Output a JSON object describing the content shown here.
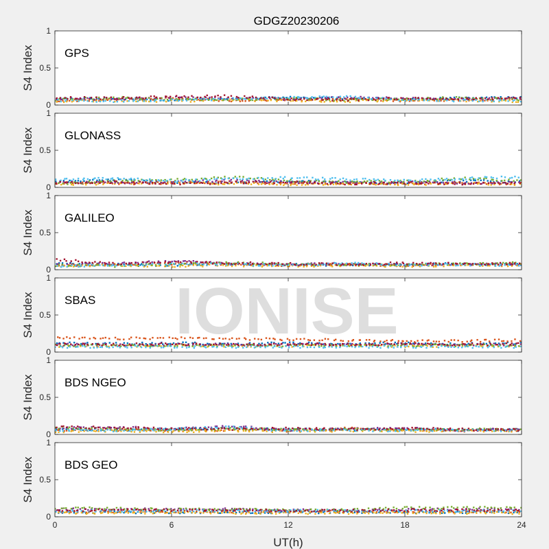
{
  "figure_title": "GDGZ20230206",
  "watermark": "IONISE",
  "colors": {
    "background": "#f0f0f0",
    "axes_bg": "#ffffff",
    "axis_line": "#262626",
    "series": [
      "#0072BD",
      "#D95319",
      "#EDB120",
      "#7E2F8E",
      "#77AC30",
      "#4DBEEE",
      "#A2142F"
    ]
  },
  "chart_data": [
    {
      "type": "scatter",
      "title": "GPS",
      "xlabel": "",
      "ylabel": "S4 Index",
      "xlim": [
        0,
        24
      ],
      "ylim": [
        0,
        1
      ],
      "xticks": [
        0,
        6,
        12,
        18,
        24
      ],
      "xtick_labels": [
        "",
        "",
        "",
        "",
        ""
      ],
      "yticks": [
        0,
        0.5,
        1
      ],
      "ytick_labels": [
        "0",
        "0.5",
        "1"
      ],
      "grid": false,
      "series": [
        {
          "x": [
            0,
            3,
            6,
            9,
            12,
            15,
            18,
            21,
            24
          ],
          "y": [
            0.08,
            0.09,
            0.07,
            0.08,
            0.1,
            0.09,
            0.08,
            0.09,
            0.1
          ]
        },
        {
          "x": [
            0,
            3,
            6,
            9,
            12,
            15,
            18,
            21,
            24
          ],
          "y": [
            0.06,
            0.07,
            0.09,
            0.06,
            0.07,
            0.08,
            0.06,
            0.07,
            0.08
          ]
        },
        {
          "x": [
            0,
            3,
            6,
            9,
            12,
            15,
            18,
            21,
            24
          ],
          "y": [
            0.05,
            0.06,
            0.05,
            0.07,
            0.06,
            0.05,
            0.07,
            0.06,
            0.05
          ]
        },
        {
          "x": [
            0,
            3,
            6,
            9,
            12,
            15,
            18,
            21,
            24
          ],
          "y": [
            0.09,
            0.08,
            0.1,
            0.09,
            0.08,
            0.1,
            0.09,
            0.08,
            0.09
          ]
        },
        {
          "x": [
            0,
            3,
            6,
            9,
            12,
            15,
            18,
            21,
            24
          ],
          "y": [
            0.07,
            0.1,
            0.08,
            0.07,
            0.09,
            0.07,
            0.08,
            0.1,
            0.07
          ]
        },
        {
          "x": [
            0,
            3,
            6,
            9,
            12,
            15,
            18,
            21,
            24
          ],
          "y": [
            0.06,
            0.05,
            0.07,
            0.08,
            0.1,
            0.11,
            0.07,
            0.06,
            0.06
          ]
        },
        {
          "x": [
            0,
            3,
            6,
            9,
            12,
            15,
            18,
            21,
            24
          ],
          "y": [
            0.1,
            0.09,
            0.11,
            0.12,
            0.08,
            0.07,
            0.09,
            0.08,
            0.09
          ]
        }
      ]
    },
    {
      "type": "scatter",
      "title": "GLONASS",
      "xlabel": "",
      "ylabel": "S4 Index",
      "xlim": [
        0,
        24
      ],
      "ylim": [
        0,
        1
      ],
      "xticks": [
        0,
        6,
        12,
        18,
        24
      ],
      "xtick_labels": [
        "",
        "",
        "",
        "",
        ""
      ],
      "yticks": [
        0,
        0.5,
        1
      ],
      "ytick_labels": [
        "0",
        "0.5",
        "1"
      ],
      "grid": false,
      "series": [
        {
          "x": [
            0,
            3,
            6,
            9,
            12,
            15,
            18,
            21,
            24
          ],
          "y": [
            0.08,
            0.1,
            0.07,
            0.06,
            0.08,
            0.07,
            0.06,
            0.09,
            0.07
          ]
        },
        {
          "x": [
            0,
            3,
            6,
            9,
            12,
            15,
            18,
            21,
            24
          ],
          "y": [
            0.06,
            0.05,
            0.06,
            0.07,
            0.05,
            0.06,
            0.05,
            0.06,
            0.05
          ]
        },
        {
          "x": [
            0,
            3,
            6,
            9,
            12,
            15,
            18,
            21,
            24
          ],
          "y": [
            0.04,
            0.05,
            0.06,
            0.05,
            0.04,
            0.05,
            0.04,
            0.05,
            0.04
          ]
        },
        {
          "x": [
            0,
            3,
            6,
            9,
            12,
            15,
            18,
            21,
            24
          ],
          "y": [
            0.07,
            0.06,
            0.08,
            0.09,
            0.07,
            0.06,
            0.07,
            0.06,
            0.07
          ]
        },
        {
          "x": [
            0,
            3,
            6,
            9,
            12,
            15,
            18,
            21,
            24
          ],
          "y": [
            0.05,
            0.08,
            0.1,
            0.14,
            0.09,
            0.07,
            0.08,
            0.12,
            0.09
          ]
        },
        {
          "x": [
            0,
            3,
            6,
            9,
            12,
            15,
            18,
            21,
            24
          ],
          "y": [
            0.1,
            0.12,
            0.09,
            0.11,
            0.13,
            0.11,
            0.09,
            0.12,
            0.14
          ]
        },
        {
          "x": [
            0,
            3,
            6,
            9,
            12,
            15,
            18,
            21,
            24
          ],
          "y": [
            0.06,
            0.07,
            0.05,
            0.06,
            0.07,
            0.05,
            0.06,
            0.05,
            0.06
          ]
        }
      ]
    },
    {
      "type": "scatter",
      "title": "GALILEO",
      "xlabel": "",
      "ylabel": "S4 Index",
      "xlim": [
        0,
        24
      ],
      "ylim": [
        0,
        1
      ],
      "xticks": [
        0,
        6,
        12,
        18,
        24
      ],
      "xtick_labels": [
        "",
        "",
        "",
        "",
        ""
      ],
      "yticks": [
        0,
        0.5,
        1
      ],
      "ytick_labels": [
        "0",
        "0.5",
        "1"
      ],
      "grid": false,
      "series": [
        {
          "x": [
            0,
            3,
            6,
            9,
            12,
            15,
            18,
            21,
            24
          ],
          "y": [
            0.08,
            0.07,
            0.06,
            0.08,
            0.07,
            0.06,
            0.07,
            0.08,
            0.07
          ]
        },
        {
          "x": [
            0,
            3,
            6,
            9,
            12,
            15,
            18,
            21,
            24
          ],
          "y": [
            0.06,
            0.07,
            0.08,
            0.07,
            0.06,
            0.07,
            0.06,
            0.07,
            0.08
          ]
        },
        {
          "x": [
            0,
            3,
            6,
            9,
            12,
            15,
            18,
            21,
            24
          ],
          "y": [
            0.05,
            0.06,
            0.05,
            0.06,
            0.05,
            0.06,
            0.05,
            0.06,
            0.05
          ]
        },
        {
          "x": [
            0,
            3,
            6,
            9,
            12,
            15,
            18,
            21,
            24
          ],
          "y": [
            0.07,
            0.08,
            0.12,
            0.08,
            0.07,
            0.08,
            0.07,
            0.08,
            0.07
          ]
        },
        {
          "x": [
            0,
            3,
            6,
            9,
            12,
            15,
            18,
            21,
            24
          ],
          "y": [
            0.06,
            0.05,
            0.07,
            0.09,
            0.08,
            0.07,
            0.06,
            0.08,
            0.09
          ]
        },
        {
          "x": [
            0,
            3,
            6,
            9,
            12,
            15,
            18,
            21,
            24
          ],
          "y": [
            0.05,
            0.06,
            0.08,
            0.07,
            0.06,
            0.09,
            0.06,
            0.07,
            0.06
          ]
        },
        {
          "x": [
            0,
            3,
            6,
            9,
            12,
            15,
            18,
            21,
            24
          ],
          "y": [
            0.14,
            0.08,
            0.1,
            0.09,
            0.08,
            0.07,
            0.09,
            0.08,
            0.08
          ]
        }
      ]
    },
    {
      "type": "scatter",
      "title": "SBAS",
      "xlabel": "",
      "ylabel": "S4 Index",
      "xlim": [
        0,
        24
      ],
      "ylim": [
        0,
        1
      ],
      "xticks": [
        0,
        6,
        12,
        18,
        24
      ],
      "xtick_labels": [
        "",
        "",
        "",
        "",
        ""
      ],
      "yticks": [
        0,
        0.5,
        1
      ],
      "ytick_labels": [
        "0",
        "0.5",
        "1"
      ],
      "grid": false,
      "series": [
        {
          "x": [
            0,
            3,
            6,
            9,
            12,
            15,
            18,
            21,
            24
          ],
          "y": [
            0.12,
            0.11,
            0.12,
            0.11,
            0.12,
            0.11,
            0.12,
            0.11,
            0.12
          ]
        },
        {
          "x": [
            0,
            3,
            6,
            9,
            12,
            15,
            18,
            21,
            24
          ],
          "y": [
            0.19,
            0.18,
            0.19,
            0.18,
            0.17,
            0.16,
            0.15,
            0.15,
            0.16
          ]
        },
        {
          "x": [
            0,
            3,
            6,
            9,
            12,
            15,
            18,
            21,
            24
          ],
          "y": [
            0.08,
            0.08,
            0.09,
            0.08,
            0.08,
            0.09,
            0.08,
            0.08,
            0.08
          ]
        },
        {
          "x": [
            0,
            3,
            6,
            9,
            12,
            15,
            18,
            21,
            24
          ],
          "y": [
            0.1,
            0.1,
            0.1,
            0.1,
            0.1,
            0.1,
            0.1,
            0.1,
            0.1
          ]
        },
        {
          "x": [
            0,
            3,
            6,
            9,
            12,
            15,
            18,
            21,
            24
          ],
          "y": [
            0.09,
            0.09,
            0.09,
            0.09,
            0.09,
            0.09,
            0.09,
            0.09,
            0.09
          ]
        },
        {
          "x": [
            0,
            3,
            6,
            9,
            12,
            15,
            18,
            21,
            24
          ],
          "y": [
            0.07,
            0.07,
            0.07,
            0.07,
            0.07,
            0.07,
            0.07,
            0.07,
            0.07
          ]
        },
        {
          "x": [
            0,
            3,
            6,
            9,
            12,
            15,
            18,
            21,
            24
          ],
          "y": [
            0.11,
            0.1,
            0.11,
            0.1,
            0.11,
            0.1,
            0.11,
            0.1,
            0.11
          ]
        }
      ]
    },
    {
      "type": "scatter",
      "title": "BDS NGEO",
      "xlabel": "",
      "ylabel": "S4 Index",
      "xlim": [
        0,
        24
      ],
      "ylim": [
        0,
        1
      ],
      "xticks": [
        0,
        6,
        12,
        18,
        24
      ],
      "xtick_labels": [
        "",
        "",
        "",
        "",
        ""
      ],
      "yticks": [
        0,
        0.5,
        1
      ],
      "ytick_labels": [
        "0",
        "0.5",
        "1"
      ],
      "grid": false,
      "series": [
        {
          "x": [
            0,
            3,
            6,
            9,
            12,
            15,
            18,
            21,
            24
          ],
          "y": [
            0.07,
            0.06,
            0.07,
            0.08,
            0.07,
            0.06,
            0.07,
            0.06,
            0.07
          ]
        },
        {
          "x": [
            0,
            3,
            6,
            9,
            12,
            15,
            18,
            21,
            24
          ],
          "y": [
            0.05,
            0.06,
            0.05,
            0.06,
            0.05,
            0.08,
            0.06,
            0.05,
            0.06
          ]
        },
        {
          "x": [
            0,
            3,
            6,
            9,
            12,
            15,
            18,
            21,
            24
          ],
          "y": [
            0.04,
            0.05,
            0.04,
            0.05,
            0.04,
            0.05,
            0.04,
            0.05,
            0.04
          ]
        },
        {
          "x": [
            0,
            3,
            6,
            9,
            12,
            15,
            18,
            21,
            24
          ],
          "y": [
            0.08,
            0.1,
            0.07,
            0.11,
            0.06,
            0.07,
            0.08,
            0.06,
            0.07
          ]
        },
        {
          "x": [
            0,
            3,
            6,
            9,
            12,
            15,
            18,
            21,
            24
          ],
          "y": [
            0.09,
            0.07,
            0.06,
            0.08,
            0.06,
            0.07,
            0.06,
            0.07,
            0.06
          ]
        },
        {
          "x": [
            0,
            3,
            6,
            9,
            12,
            15,
            18,
            21,
            24
          ],
          "y": [
            0.06,
            0.05,
            0.07,
            0.1,
            0.05,
            0.06,
            0.05,
            0.06,
            0.05
          ]
        },
        {
          "x": [
            0,
            3,
            6,
            9,
            12,
            15,
            18,
            21,
            24
          ],
          "y": [
            0.1,
            0.09,
            0.08,
            0.07,
            0.08,
            0.07,
            0.08,
            0.07,
            0.06
          ]
        }
      ]
    },
    {
      "type": "scatter",
      "title": "BDS GEO",
      "xlabel": "UT(h)",
      "ylabel": "S4 Index",
      "xlim": [
        0,
        24
      ],
      "ylim": [
        0,
        1
      ],
      "xticks": [
        0,
        6,
        12,
        18,
        24
      ],
      "xtick_labels": [
        "0",
        "6",
        "12",
        "18",
        "24"
      ],
      "yticks": [
        0,
        0.5,
        1
      ],
      "ytick_labels": [
        "0",
        "0.5",
        "1"
      ],
      "grid": false,
      "series": [
        {
          "x": [
            0,
            3,
            6,
            9,
            12,
            15,
            18,
            21,
            24
          ],
          "y": [
            0.06,
            0.06,
            0.06,
            0.06,
            0.06,
            0.06,
            0.06,
            0.06,
            0.06
          ]
        },
        {
          "x": [
            0,
            3,
            6,
            9,
            12,
            15,
            18,
            21,
            24
          ],
          "y": [
            0.07,
            0.07,
            0.07,
            0.07,
            0.07,
            0.07,
            0.07,
            0.07,
            0.07
          ]
        },
        {
          "x": [
            0,
            3,
            6,
            9,
            12,
            15,
            18,
            21,
            24
          ],
          "y": [
            0.05,
            0.05,
            0.05,
            0.05,
            0.05,
            0.05,
            0.05,
            0.05,
            0.05
          ]
        },
        {
          "x": [
            0,
            3,
            6,
            9,
            12,
            15,
            18,
            21,
            24
          ],
          "y": [
            0.1,
            0.1,
            0.1,
            0.1,
            0.09,
            0.09,
            0.1,
            0.1,
            0.1
          ]
        },
        {
          "x": [
            0,
            3,
            6,
            9,
            12,
            15,
            18,
            21,
            24
          ],
          "y": [
            0.12,
            0.11,
            0.1,
            0.1,
            0.09,
            0.09,
            0.12,
            0.12,
            0.12
          ]
        },
        {
          "x": [
            0,
            3,
            6,
            9,
            12,
            15,
            18,
            21,
            24
          ],
          "y": [
            0.08,
            0.08,
            0.08,
            0.08,
            0.08,
            0.08,
            0.08,
            0.08,
            0.08
          ]
        },
        {
          "x": [
            0,
            3,
            6,
            9,
            12,
            15,
            18,
            21,
            24
          ],
          "y": [
            0.09,
            0.09,
            0.09,
            0.09,
            0.08,
            0.08,
            0.09,
            0.09,
            0.09
          ]
        }
      ]
    }
  ]
}
